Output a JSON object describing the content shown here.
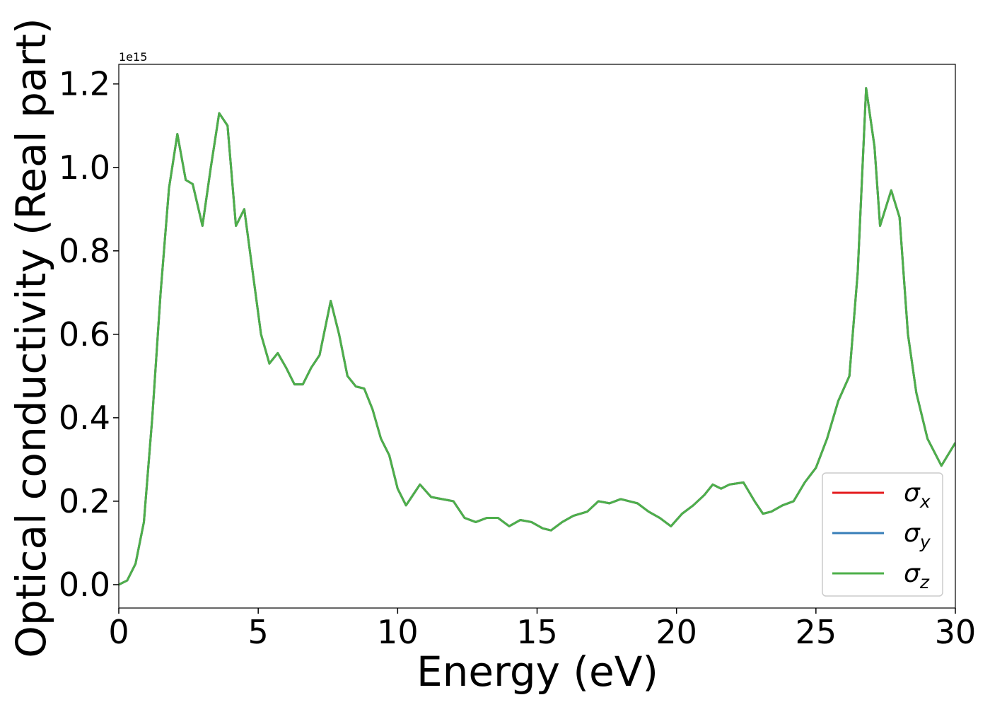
{
  "chart_data": {
    "type": "line",
    "xlabel": "Energy (eV)",
    "ylabel": "Optical conductivity (Real part)",
    "offset_text": "1e15",
    "x": [
      0,
      0.3,
      0.6,
      0.9,
      1.2,
      1.5,
      1.8,
      2.1,
      2.4,
      2.65,
      3.0,
      3.3,
      3.6,
      3.9,
      4.2,
      4.5,
      4.8,
      5.1,
      5.4,
      5.7,
      6.0,
      6.3,
      6.6,
      6.9,
      7.2,
      7.6,
      7.9,
      8.2,
      8.5,
      8.8,
      9.1,
      9.4,
      9.7,
      10.0,
      10.3,
      10.6,
      10.8,
      11.2,
      11.6,
      12.0,
      12.4,
      12.8,
      13.2,
      13.6,
      14.0,
      14.4,
      14.8,
      15.2,
      15.5,
      15.9,
      16.3,
      16.8,
      17.2,
      17.6,
      18.0,
      18.6,
      19.0,
      19.4,
      19.8,
      20.2,
      20.6,
      21.0,
      21.3,
      21.6,
      21.9,
      22.4,
      22.8,
      23.1,
      23.4,
      23.8,
      24.2,
      24.6,
      25.0,
      25.4,
      25.8,
      26.2,
      26.5,
      26.8,
      27.1,
      27.3,
      27.7,
      28.0,
      28.3,
      28.6,
      29.0,
      29.5,
      30.0
    ],
    "series": [
      {
        "name": "σx",
        "color": "#e41a1c",
        "values": [
          0.0,
          0.01,
          0.05,
          0.15,
          0.4,
          0.7,
          0.95,
          1.08,
          0.97,
          0.96,
          0.86,
          1.0,
          1.13,
          1.1,
          0.86,
          0.9,
          0.75,
          0.6,
          0.53,
          0.555,
          0.52,
          0.48,
          0.48,
          0.52,
          0.55,
          0.68,
          0.6,
          0.5,
          0.475,
          0.47,
          0.42,
          0.35,
          0.31,
          0.23,
          0.19,
          0.22,
          0.24,
          0.21,
          0.205,
          0.2,
          0.16,
          0.15,
          0.16,
          0.16,
          0.14,
          0.155,
          0.15,
          0.135,
          0.13,
          0.15,
          0.165,
          0.175,
          0.2,
          0.195,
          0.205,
          0.195,
          0.175,
          0.16,
          0.14,
          0.17,
          0.19,
          0.215,
          0.24,
          0.23,
          0.24,
          0.245,
          0.2,
          0.17,
          0.175,
          0.19,
          0.2,
          0.245,
          0.28,
          0.35,
          0.44,
          0.5,
          0.75,
          1.19,
          1.05,
          0.86,
          0.945,
          0.88,
          0.6,
          0.46,
          0.35,
          0.285,
          0.34
        ]
      },
      {
        "name": "σy",
        "color": "#377eb8",
        "values": [
          0.0,
          0.01,
          0.05,
          0.15,
          0.4,
          0.7,
          0.95,
          1.08,
          0.97,
          0.96,
          0.86,
          1.0,
          1.13,
          1.1,
          0.86,
          0.9,
          0.75,
          0.6,
          0.53,
          0.555,
          0.52,
          0.48,
          0.48,
          0.52,
          0.55,
          0.68,
          0.6,
          0.5,
          0.475,
          0.47,
          0.42,
          0.35,
          0.31,
          0.23,
          0.19,
          0.22,
          0.24,
          0.21,
          0.205,
          0.2,
          0.16,
          0.15,
          0.16,
          0.16,
          0.14,
          0.155,
          0.15,
          0.135,
          0.13,
          0.15,
          0.165,
          0.175,
          0.2,
          0.195,
          0.205,
          0.195,
          0.175,
          0.16,
          0.14,
          0.17,
          0.19,
          0.215,
          0.24,
          0.23,
          0.24,
          0.245,
          0.2,
          0.17,
          0.175,
          0.19,
          0.2,
          0.245,
          0.28,
          0.35,
          0.44,
          0.5,
          0.75,
          1.19,
          1.05,
          0.86,
          0.945,
          0.88,
          0.6,
          0.46,
          0.35,
          0.285,
          0.34
        ]
      },
      {
        "name": "σz",
        "color": "#4daf4a",
        "values": [
          0.0,
          0.01,
          0.05,
          0.15,
          0.4,
          0.7,
          0.95,
          1.08,
          0.97,
          0.96,
          0.86,
          1.0,
          1.13,
          1.1,
          0.86,
          0.9,
          0.75,
          0.6,
          0.53,
          0.555,
          0.52,
          0.48,
          0.48,
          0.52,
          0.55,
          0.68,
          0.6,
          0.5,
          0.475,
          0.47,
          0.42,
          0.35,
          0.31,
          0.23,
          0.19,
          0.22,
          0.24,
          0.21,
          0.205,
          0.2,
          0.16,
          0.15,
          0.16,
          0.16,
          0.14,
          0.155,
          0.15,
          0.135,
          0.13,
          0.15,
          0.165,
          0.175,
          0.2,
          0.195,
          0.205,
          0.195,
          0.175,
          0.16,
          0.14,
          0.17,
          0.19,
          0.215,
          0.24,
          0.23,
          0.24,
          0.245,
          0.2,
          0.17,
          0.175,
          0.19,
          0.2,
          0.245,
          0.28,
          0.35,
          0.44,
          0.5,
          0.75,
          1.19,
          1.05,
          0.86,
          0.945,
          0.88,
          0.6,
          0.46,
          0.35,
          0.285,
          0.34
        ]
      }
    ],
    "xlim": [
      0,
      30
    ],
    "xticks": [
      0,
      5,
      10,
      15,
      20,
      25,
      30
    ],
    "ylim": [
      -0.056,
      1.247
    ],
    "yticks": [
      {
        "value": 0,
        "label": "0.0"
      },
      {
        "value": 0.2,
        "label": "0.2"
      },
      {
        "value": 0.4,
        "label": "0.4"
      },
      {
        "value": 0.6,
        "label": "0.6"
      },
      {
        "value": 0.8,
        "label": "0.8"
      },
      {
        "value": 1.0,
        "label": "1.0"
      },
      {
        "value": 1.2,
        "label": "1.2"
      }
    ],
    "legend": "lower right",
    "grid": false
  }
}
